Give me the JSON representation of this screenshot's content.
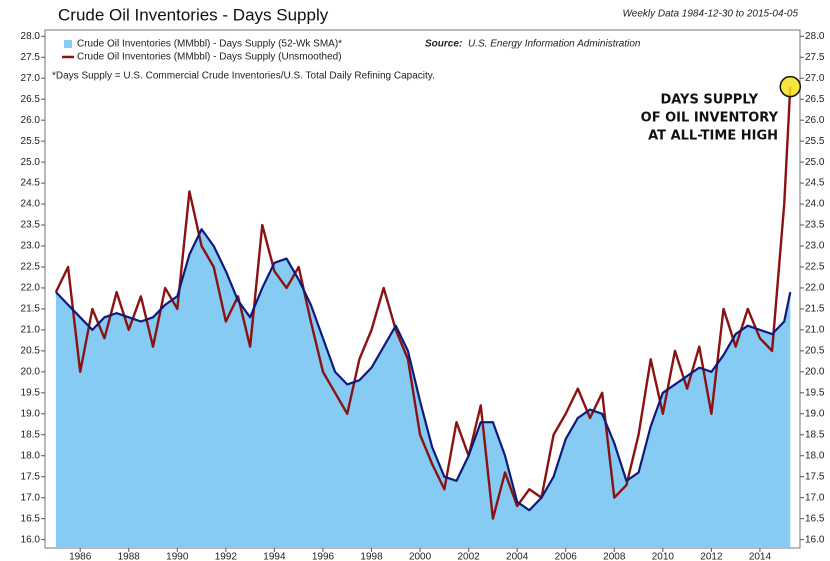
{
  "chart_data": {
    "type": "line",
    "title": "Crude Oil Inventories - Days Supply",
    "subtitle": "Weekly Data 1984-12-30 to 2015-04-05",
    "source_label": "Source:",
    "source": "U.S. Energy Information Administration",
    "footnote": "*Days Supply = U.S. Commercial Crude Inventories/U.S. Total Daily Refining Capacity.",
    "annotation": [
      "DAYS SUPPLY",
      "OF OIL INVENTORY",
      "AT ALL-TIME HIGH"
    ],
    "x": [
      1985.0,
      1985.5,
      1986.0,
      1986.5,
      1987.0,
      1987.5,
      1988.0,
      1988.5,
      1989.0,
      1989.5,
      1990.0,
      1990.5,
      1991.0,
      1991.5,
      1992.0,
      1992.5,
      1993.0,
      1993.5,
      1994.0,
      1994.5,
      1995.0,
      1995.5,
      1996.0,
      1996.5,
      1997.0,
      1997.5,
      1998.0,
      1998.5,
      1999.0,
      1999.5,
      2000.0,
      2000.5,
      2001.0,
      2001.5,
      2002.0,
      2002.5,
      2003.0,
      2003.5,
      2004.0,
      2004.5,
      2005.0,
      2005.5,
      2006.0,
      2006.5,
      2007.0,
      2007.5,
      2008.0,
      2008.5,
      2009.0,
      2009.5,
      2010.0,
      2010.5,
      2011.0,
      2011.5,
      2012.0,
      2012.5,
      2013.0,
      2013.5,
      2014.0,
      2014.5,
      2015.0,
      2015.25
    ],
    "series": [
      {
        "name": "Crude Oil Inventories (MMbbl) - Days Supply (52-Wk SMA)*",
        "color": "#0d1a7a",
        "fill": "#86cbf4",
        "values": [
          21.9,
          21.6,
          21.3,
          21.0,
          21.3,
          21.4,
          21.3,
          21.2,
          21.3,
          21.6,
          21.8,
          22.8,
          23.4,
          23.0,
          22.4,
          21.7,
          21.3,
          22.0,
          22.6,
          22.7,
          22.2,
          21.6,
          20.8,
          20.0,
          19.7,
          19.8,
          20.1,
          20.6,
          21.1,
          20.5,
          19.3,
          18.2,
          17.5,
          17.4,
          18.0,
          18.8,
          18.8,
          18.0,
          16.9,
          16.7,
          17.0,
          17.5,
          18.4,
          18.9,
          19.1,
          19.0,
          18.3,
          17.4,
          17.6,
          18.7,
          19.5,
          19.7,
          19.9,
          20.1,
          20.0,
          20.4,
          20.9,
          21.1,
          21.0,
          20.9,
          21.2,
          21.9
        ]
      },
      {
        "name": "Crude Oil Inventories (MMbbl) - Days Supply (Unsmoothed)",
        "color": "#8b1212",
        "values": [
          21.9,
          22.5,
          20.0,
          21.5,
          20.8,
          21.9,
          21.0,
          21.8,
          20.6,
          22.0,
          21.5,
          24.3,
          23.0,
          22.5,
          21.2,
          21.8,
          20.6,
          23.5,
          22.4,
          22.0,
          22.5,
          21.2,
          20.0,
          19.5,
          19.0,
          20.3,
          21.0,
          22.0,
          21.0,
          20.3,
          18.5,
          17.8,
          17.2,
          18.8,
          18.0,
          19.2,
          16.5,
          17.6,
          16.8,
          17.2,
          17.0,
          18.5,
          19.0,
          19.6,
          18.9,
          19.5,
          17.0,
          17.3,
          18.5,
          20.3,
          19.0,
          20.5,
          19.6,
          20.6,
          19.0,
          21.5,
          20.6,
          21.5,
          20.8,
          20.5,
          24.0,
          26.8
        ]
      }
    ],
    "xlim": [
      1984.55,
      2015.65
    ],
    "xticks": [
      1986,
      1988,
      1990,
      1992,
      1994,
      1996,
      1998,
      2000,
      2002,
      2004,
      2006,
      2008,
      2010,
      2012,
      2014
    ],
    "ylim": [
      15.8,
      28.15
    ],
    "yticks": [
      {
        "value": 16,
        "label": "16.0"
      },
      16.5,
      {
        "value": 17,
        "label": "17.0"
      },
      17.5,
      {
        "value": 18,
        "label": "18.0"
      },
      18.5,
      {
        "value": 19,
        "label": "19.0"
      },
      19.5,
      {
        "value": 20,
        "label": "20.0"
      },
      20.5,
      {
        "value": 21,
        "label": "21.0"
      },
      21.5,
      {
        "value": 22,
        "label": "22.0"
      },
      22.5,
      {
        "value": 23,
        "label": "23.0"
      },
      23.5,
      {
        "value": 24,
        "label": "24.0"
      },
      24.5,
      {
        "value": 25,
        "label": "25.0"
      },
      25.5,
      {
        "value": 26,
        "label": "26.0"
      },
      26.5,
      {
        "value": 27,
        "label": "27.0"
      },
      27.5,
      {
        "value": 28,
        "label": "28.0"
      }
    ],
    "highlight_color": "#f5e11a"
  }
}
